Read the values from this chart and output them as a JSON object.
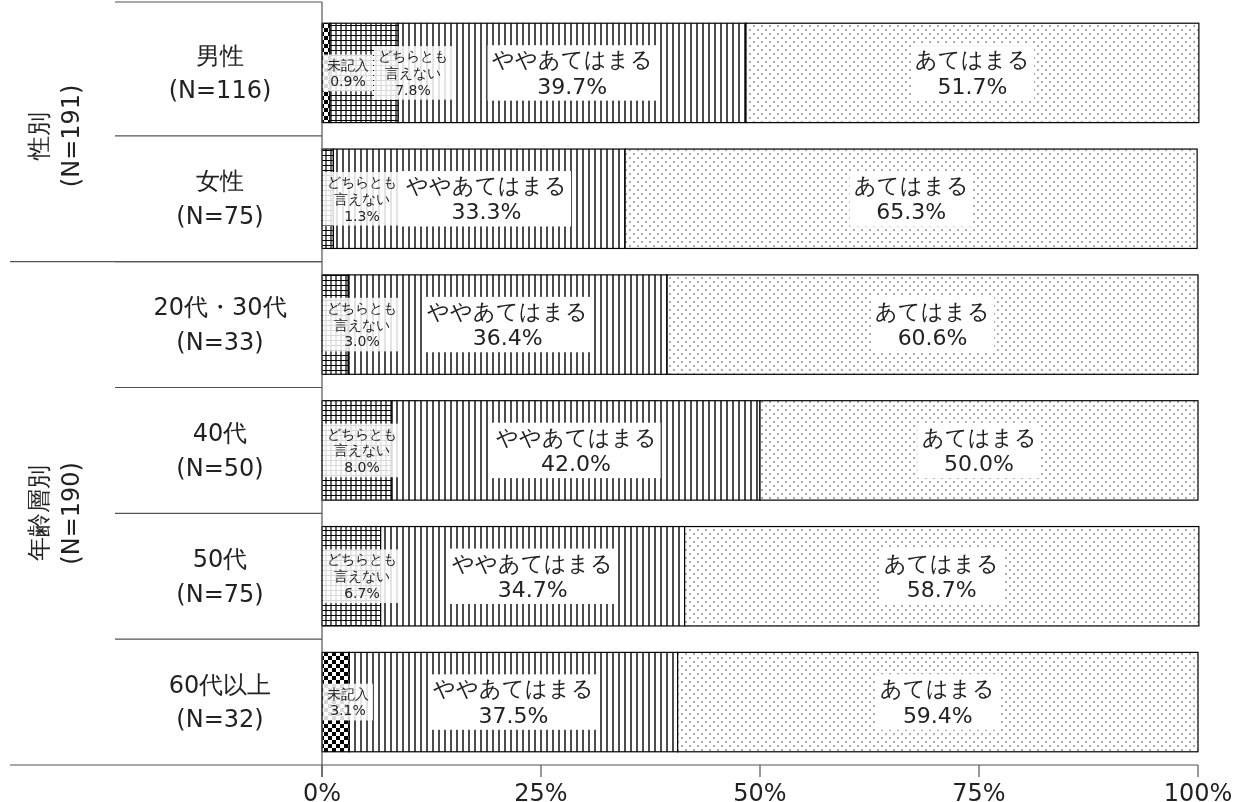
{
  "chart_data": {
    "type": "bar",
    "orientation": "horizontal",
    "stacked": true,
    "categories": [
      "男性\n(N=116)",
      "女性\n(N=75)",
      "20代・30代\n(N=33)",
      "40代\n(N=50)",
      "50代\n(N=75)",
      "60代以上\n(N=32)"
    ],
    "series": [
      {
        "name": "未記入",
        "color": "#000000",
        "values": [
          0.9,
          null,
          null,
          null,
          null,
          3.1
        ],
        "value_labels": [
          "0.9%",
          null,
          null,
          null,
          null,
          "3.1%"
        ]
      },
      {
        "name": "どちらとも言えない",
        "color": "#000000",
        "values": [
          7.8,
          1.3,
          3.0,
          8.0,
          6.7,
          null
        ],
        "value_labels": [
          "7.8%",
          "1.3%",
          "3.0%",
          "8.0%",
          "6.7%",
          null
        ]
      },
      {
        "name": "ややあてはまる",
        "color": "#000000",
        "values": [
          39.7,
          33.3,
          36.4,
          42.0,
          34.7,
          37.5
        ],
        "value_labels": [
          "39.7%",
          "33.3%",
          "36.4%",
          "42.0%",
          "34.7%",
          "37.5%"
        ]
      },
      {
        "name": "あてはまる",
        "color": "#000000",
        "values": [
          51.7,
          65.3,
          60.6,
          50.0,
          58.7,
          59.4
        ],
        "value_labels": [
          "51.7%",
          "65.3%",
          "60.6%",
          "50.0%",
          "58.7%",
          "59.4%"
        ]
      }
    ],
    "xlim": [
      0,
      100
    ],
    "xticks": [
      {
        "value": 0,
        "label": "0%"
      },
      {
        "value": 25,
        "label": "25%"
      },
      {
        "value": 50,
        "label": "50%"
      },
      {
        "value": 75,
        "label": "75%"
      },
      {
        "value": 100,
        "label": "100%"
      }
    ],
    "annotations": [
      "性別\n(N=191)",
      "年齢層別\n(N=190)"
    ],
    "grid": false
  }
}
